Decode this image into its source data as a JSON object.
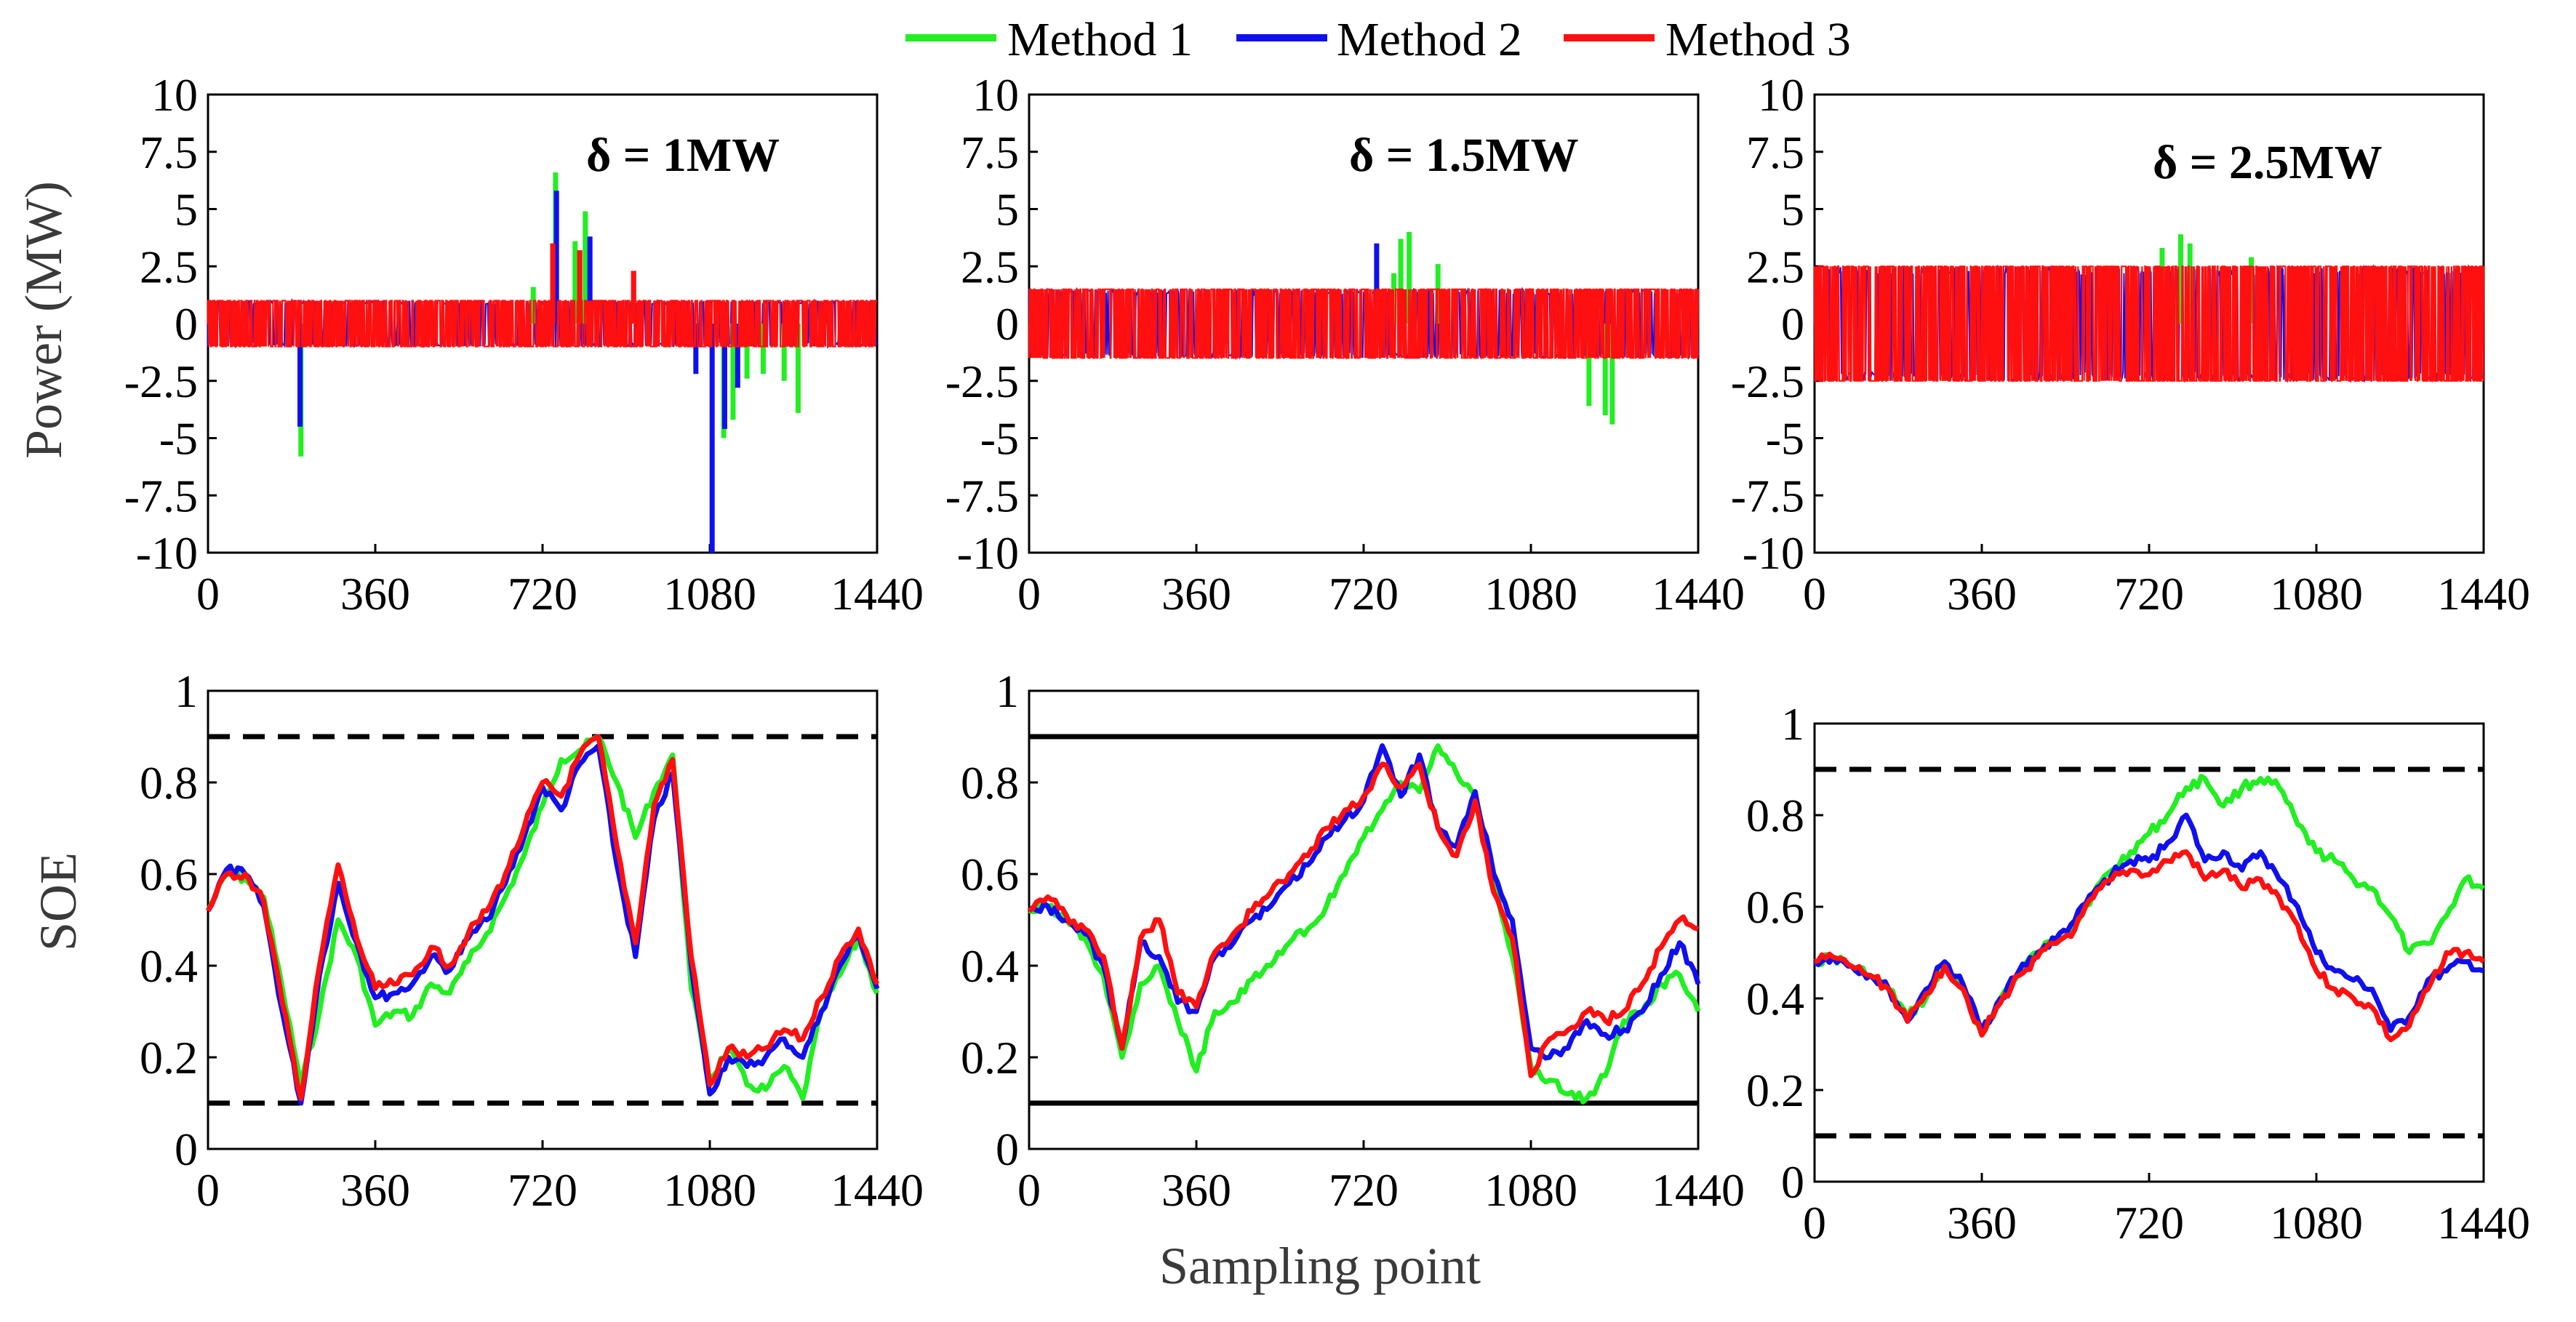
{
  "chart_data": {
    "type": "line",
    "legend": {
      "position": "top-center",
      "entries": [
        {
          "name": "Method 1",
          "color": "#22ee22"
        },
        {
          "name": "Method 2",
          "color": "#1010ee"
        },
        {
          "name": "Method 3",
          "color": "#ff1010"
        }
      ]
    },
    "xlabel": "Sampling point",
    "power_ylabel": "Power (MW)",
    "soe_ylabel": "SOE",
    "xlim": [
      0,
      1440
    ],
    "xticks": [
      "0",
      "360",
      "720",
      "1080",
      "1440"
    ],
    "power_ylim": [
      -10,
      10
    ],
    "power_yticks": [
      "10",
      "7.5",
      "5",
      "2.5",
      "0",
      "-2.5",
      "-5",
      "-7.5",
      "-10"
    ],
    "soe_ylim": [
      0,
      1
    ],
    "soe_yticks": [
      "1",
      "0.8",
      "0.6",
      "0.4",
      "0.2",
      "0"
    ],
    "soe_limits": [
      0.1,
      0.9
    ],
    "panels": [
      {
        "label": "δ = 1MW",
        "delta": 1.0,
        "limit_style": "dashed",
        "power_spikes": [
          {
            "series": "Method 1",
            "x": 200,
            "y": -5.8
          },
          {
            "series": "Method 2",
            "x": 198,
            "y": -4.5
          },
          {
            "series": "Method 1",
            "x": 700,
            "y": 1.6
          },
          {
            "series": "Method 1",
            "x": 748,
            "y": 6.6
          },
          {
            "series": "Method 2",
            "x": 750,
            "y": 5.8
          },
          {
            "series": "Method 3",
            "x": 742,
            "y": 3.5
          },
          {
            "series": "Method 1",
            "x": 790,
            "y": 3.6
          },
          {
            "series": "Method 1",
            "x": 812,
            "y": 4.9
          },
          {
            "series": "Method 3",
            "x": 800,
            "y": 3.2
          },
          {
            "series": "Method 2",
            "x": 822,
            "y": 3.8
          },
          {
            "series": "Method 3",
            "x": 916,
            "y": 2.3
          },
          {
            "series": "Method 2",
            "x": 1050,
            "y": -2.2
          },
          {
            "series": "Method 2",
            "x": 1085,
            "y": -10
          },
          {
            "series": "Method 1",
            "x": 1110,
            "y": -5.0
          },
          {
            "series": "Method 2",
            "x": 1112,
            "y": -4.6
          },
          {
            "series": "Method 1",
            "x": 1130,
            "y": -4.2
          },
          {
            "series": "Method 2",
            "x": 1140,
            "y": -2.8
          },
          {
            "series": "Method 1",
            "x": 1160,
            "y": -2.4
          },
          {
            "series": "Method 1",
            "x": 1195,
            "y": -2.2
          },
          {
            "series": "Method 1",
            "x": 1240,
            "y": -2.5
          },
          {
            "series": "Method 1",
            "x": 1270,
            "y": -3.9
          }
        ],
        "soe": {
          "x": [
            0,
            40,
            80,
            120,
            160,
            200,
            240,
            280,
            320,
            360,
            400,
            440,
            480,
            520,
            560,
            600,
            640,
            680,
            720,
            760,
            800,
            840,
            880,
            920,
            960,
            1000,
            1040,
            1080,
            1120,
            1160,
            1200,
            1240,
            1280,
            1320,
            1360,
            1400,
            1440
          ],
          "series": [
            {
              "name": "Method 1",
              "values": [
                0.52,
                0.6,
                0.59,
                0.55,
                0.35,
                0.14,
                0.3,
                0.5,
                0.42,
                0.27,
                0.3,
                0.29,
                0.36,
                0.34,
                0.41,
                0.47,
                0.55,
                0.64,
                0.75,
                0.85,
                0.87,
                0.9,
                0.8,
                0.68,
                0.78,
                0.86,
                0.35,
                0.15,
                0.22,
                0.14,
                0.13,
                0.18,
                0.11,
                0.3,
                0.38,
                0.46,
                0.34
              ]
            },
            {
              "name": "Method 2",
              "values": [
                0.52,
                0.61,
                0.6,
                0.53,
                0.3,
                0.1,
                0.38,
                0.58,
                0.45,
                0.33,
                0.34,
                0.36,
                0.42,
                0.39,
                0.46,
                0.5,
                0.58,
                0.68,
                0.79,
                0.74,
                0.84,
                0.88,
                0.62,
                0.42,
                0.72,
                0.82,
                0.4,
                0.12,
                0.2,
                0.18,
                0.2,
                0.24,
                0.2,
                0.3,
                0.4,
                0.47,
                0.35
              ]
            },
            {
              "name": "Method 3",
              "values": [
                0.52,
                0.6,
                0.6,
                0.54,
                0.32,
                0.11,
                0.4,
                0.62,
                0.46,
                0.35,
                0.36,
                0.38,
                0.44,
                0.4,
                0.47,
                0.52,
                0.6,
                0.7,
                0.8,
                0.77,
                0.86,
                0.9,
                0.66,
                0.45,
                0.75,
                0.85,
                0.42,
                0.14,
                0.22,
                0.2,
                0.22,
                0.26,
                0.24,
                0.33,
                0.42,
                0.48,
                0.36
              ]
            }
          ]
        }
      },
      {
        "label": "δ = 1.5MW",
        "delta": 1.5,
        "limit_style": "solid",
        "power_spikes": [
          {
            "series": "Method 2",
            "x": 748,
            "y": 3.5
          },
          {
            "series": "Method 1",
            "x": 785,
            "y": 2.2
          },
          {
            "series": "Method 1",
            "x": 800,
            "y": 3.7
          },
          {
            "series": "Method 1",
            "x": 818,
            "y": 4.0
          },
          {
            "series": "Method 1",
            "x": 880,
            "y": 2.6
          },
          {
            "series": "Method 1",
            "x": 1205,
            "y": -3.6
          },
          {
            "series": "Method 1",
            "x": 1240,
            "y": -4.0
          },
          {
            "series": "Method 1",
            "x": 1255,
            "y": -4.4
          }
        ],
        "soe": {
          "x": [
            0,
            40,
            80,
            120,
            160,
            200,
            240,
            280,
            320,
            360,
            400,
            440,
            480,
            520,
            560,
            600,
            640,
            680,
            720,
            760,
            800,
            840,
            880,
            920,
            960,
            1000,
            1040,
            1080,
            1120,
            1160,
            1200,
            1240,
            1280,
            1320,
            1360,
            1400,
            1440
          ],
          "series": [
            {
              "name": "Method 1",
              "values": [
                0.52,
                0.53,
                0.5,
                0.46,
                0.38,
                0.2,
                0.36,
                0.4,
                0.28,
                0.17,
                0.3,
                0.32,
                0.37,
                0.4,
                0.45,
                0.48,
                0.53,
                0.6,
                0.68,
                0.74,
                0.8,
                0.78,
                0.88,
                0.82,
                0.77,
                0.58,
                0.42,
                0.18,
                0.15,
                0.12,
                0.11,
                0.16,
                0.28,
                0.3,
                0.36,
                0.38,
                0.3
              ]
            },
            {
              "name": "Method 2",
              "values": [
                0.52,
                0.53,
                0.5,
                0.47,
                0.4,
                0.22,
                0.45,
                0.42,
                0.32,
                0.3,
                0.42,
                0.45,
                0.5,
                0.53,
                0.58,
                0.62,
                0.68,
                0.72,
                0.76,
                0.88,
                0.77,
                0.86,
                0.7,
                0.66,
                0.78,
                0.6,
                0.5,
                0.22,
                0.2,
                0.22,
                0.28,
                0.25,
                0.26,
                0.3,
                0.38,
                0.45,
                0.36
              ]
            },
            {
              "name": "Method 3",
              "values": [
                0.52,
                0.55,
                0.51,
                0.48,
                0.42,
                0.22,
                0.46,
                0.5,
                0.34,
                0.31,
                0.43,
                0.47,
                0.52,
                0.56,
                0.6,
                0.64,
                0.7,
                0.74,
                0.77,
                0.84,
                0.79,
                0.84,
                0.7,
                0.64,
                0.76,
                0.56,
                0.46,
                0.16,
                0.24,
                0.26,
                0.3,
                0.28,
                0.3,
                0.36,
                0.44,
                0.5,
                0.48
              ]
            }
          ]
        }
      },
      {
        "label": "δ = 2.5MW",
        "delta": 2.5,
        "limit_style": "dashed",
        "power_spikes": [
          {
            "series": "Method 1",
            "x": 748,
            "y": 3.3
          },
          {
            "series": "Method 1",
            "x": 788,
            "y": 3.9
          },
          {
            "series": "Method 1",
            "x": 808,
            "y": 3.5
          },
          {
            "series": "Method 1",
            "x": 940,
            "y": 2.9
          }
        ],
        "soe": {
          "x": [
            0,
            40,
            80,
            120,
            160,
            200,
            240,
            280,
            320,
            360,
            400,
            440,
            480,
            520,
            560,
            600,
            640,
            680,
            720,
            760,
            800,
            840,
            880,
            920,
            960,
            1000,
            1040,
            1080,
            1120,
            1160,
            1200,
            1240,
            1280,
            1320,
            1360,
            1400,
            1440
          ],
          "series": [
            {
              "name": "Method 1",
              "values": [
                0.48,
                0.49,
                0.47,
                0.45,
                0.42,
                0.36,
                0.4,
                0.47,
                0.42,
                0.32,
                0.4,
                0.46,
                0.5,
                0.53,
                0.56,
                0.63,
                0.68,
                0.72,
                0.76,
                0.8,
                0.86,
                0.88,
                0.82,
                0.86,
                0.88,
                0.86,
                0.78,
                0.72,
                0.7,
                0.66,
                0.64,
                0.58,
                0.5,
                0.52,
                0.58,
                0.66,
                0.64
              ]
            },
            {
              "name": "Method 2",
              "values": [
                0.48,
                0.49,
                0.47,
                0.45,
                0.42,
                0.35,
                0.42,
                0.48,
                0.43,
                0.33,
                0.4,
                0.46,
                0.5,
                0.53,
                0.57,
                0.63,
                0.67,
                0.7,
                0.7,
                0.74,
                0.8,
                0.7,
                0.72,
                0.68,
                0.72,
                0.66,
                0.6,
                0.5,
                0.46,
                0.44,
                0.42,
                0.33,
                0.36,
                0.44,
                0.46,
                0.48,
                0.46
              ]
            },
            {
              "name": "Method 3",
              "values": [
                0.48,
                0.49,
                0.47,
                0.45,
                0.42,
                0.35,
                0.41,
                0.47,
                0.42,
                0.32,
                0.39,
                0.45,
                0.49,
                0.52,
                0.55,
                0.62,
                0.66,
                0.68,
                0.67,
                0.7,
                0.72,
                0.66,
                0.68,
                0.64,
                0.66,
                0.62,
                0.56,
                0.46,
                0.42,
                0.4,
                0.38,
                0.31,
                0.34,
                0.42,
                0.5,
                0.5,
                0.48
              ]
            }
          ]
        }
      }
    ]
  }
}
